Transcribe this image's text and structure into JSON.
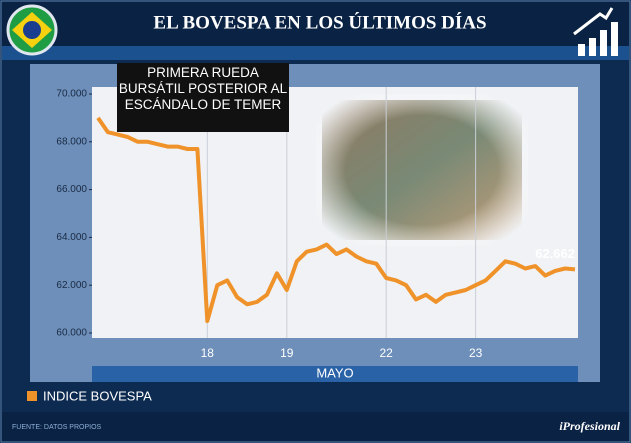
{
  "chart_data": {
    "type": "line",
    "title": "EL BOVESPA EN LOS ÚLTIMOS DÍAS",
    "annotation": "PRIMERA RUEDA BURSÁTIL POSTERIOR AL ESCÁNDALO DE TEMER",
    "x_label": "MAYO",
    "source": "FUENTE: DATOS PROPIOS",
    "brand": "iProfesional",
    "categories": [
      null,
      null,
      null,
      null,
      null,
      null,
      null,
      null,
      null,
      null,
      null,
      "18",
      null,
      null,
      null,
      null,
      null,
      null,
      null,
      "19",
      null,
      null,
      null,
      null,
      null,
      null,
      null,
      null,
      null,
      "22",
      null,
      null,
      null,
      null,
      null,
      null,
      null,
      null,
      "23",
      null,
      null,
      null,
      null,
      null,
      null,
      null,
      null,
      null,
      null
    ],
    "series": [
      {
        "name": "INDICE BOVESPA",
        "color": "#f0922a",
        "values": [
          69000,
          68400,
          68300,
          68200,
          68000,
          68000,
          67900,
          67800,
          67800,
          67700,
          67700,
          60500,
          62000,
          62200,
          61500,
          61200,
          61300,
          61600,
          62500,
          61800,
          63000,
          63400,
          63500,
          63700,
          63300,
          63500,
          63200,
          63000,
          62900,
          62300,
          62200,
          62000,
          61400,
          61600,
          61300,
          61600,
          61700,
          61800,
          62000,
          62200,
          62600,
          63000,
          62900,
          62700,
          62800,
          62400,
          62600,
          62700,
          62662
        ],
        "value_labels": [
          null,
          null,
          null,
          null,
          null,
          null,
          null,
          null,
          null,
          null,
          null,
          null,
          null,
          null,
          null,
          null,
          null,
          null,
          null,
          null,
          null,
          null,
          null,
          null,
          null,
          null,
          null,
          null,
          null,
          null,
          null,
          null,
          null,
          null,
          null,
          null,
          null,
          null,
          null,
          null,
          null,
          null,
          null,
          null,
          null,
          null,
          null,
          null,
          "62.662"
        ]
      }
    ],
    "ylim": [
      60000,
      70000
    ],
    "yticks": [
      {
        "value": 60000,
        "label": "60.000"
      },
      {
        "value": 62000,
        "label": "62.000"
      },
      {
        "value": 64000,
        "label": "64.000"
      },
      {
        "value": 66000,
        "label": "66.000"
      },
      {
        "value": 68000,
        "label": "68.000"
      },
      {
        "value": 70000,
        "label": "70.000"
      }
    ],
    "grid": "x"
  }
}
